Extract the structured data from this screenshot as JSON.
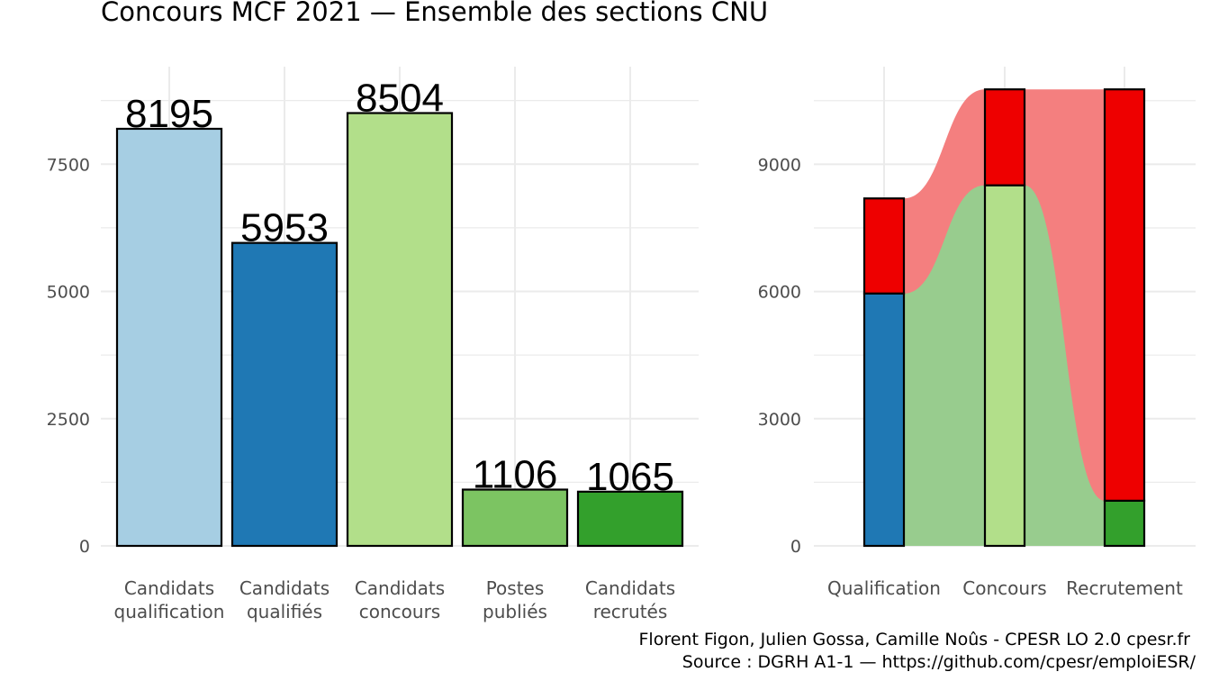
{
  "title": "Concours MCF  2021  —  Ensemble des sections CNU",
  "caption": [
    "Florent Figon, Julien Gossa, Camille Noûs - CPESR LO 2.0 cpesr.fr",
    "Source : DGRH A1-1 — https://github.com/cpesr/emploiESR/"
  ],
  "colors": {
    "qualification": "#a6cee3",
    "qualifies": "#1f78b4",
    "concours": "#b2df8a",
    "postes": "#7cc462",
    "recrutes": "#33a02c",
    "lost": "#ee0000",
    "flow_red": "#f47f7f",
    "flow_green": "#98cc8e"
  },
  "chart_data": [
    {
      "type": "bar",
      "categories": [
        [
          "Candidats",
          "qualification"
        ],
        [
          "Candidats",
          "qualifiés"
        ],
        [
          "Candidats",
          "concours"
        ],
        [
          "Postes",
          "publiés"
        ],
        [
          "Candidats",
          "recrutés"
        ]
      ],
      "values": [
        8195,
        5953,
        8504,
        1106,
        1065
      ],
      "data_labels": [
        "8195",
        "5953",
        "8504",
        "1106",
        "1065"
      ],
      "ylim": [
        0,
        9000
      ],
      "yticks": [
        0,
        2500,
        5000,
        7500
      ],
      "ytick_labels": [
        "0",
        "2500",
        "5000",
        "7500"
      ],
      "grid": true
    },
    {
      "type": "bar",
      "stacked": true,
      "categories": [
        "Qualification",
        "Concours",
        "Recrutement"
      ],
      "series": [
        {
          "values": [
            5953,
            8504,
            1065
          ]
        },
        {
          "values": [
            2242,
            2263,
            9702
          ]
        }
      ],
      "totals": [
        8195,
        10767,
        10767
      ],
      "flows": "shaded ribbons between stacked bars",
      "ylim": [
        0,
        11000
      ],
      "yticks": [
        0,
        3000,
        6000,
        9000
      ],
      "ytick_labels": [
        "0",
        "3000",
        "6000",
        "9000"
      ],
      "grid": true
    }
  ]
}
